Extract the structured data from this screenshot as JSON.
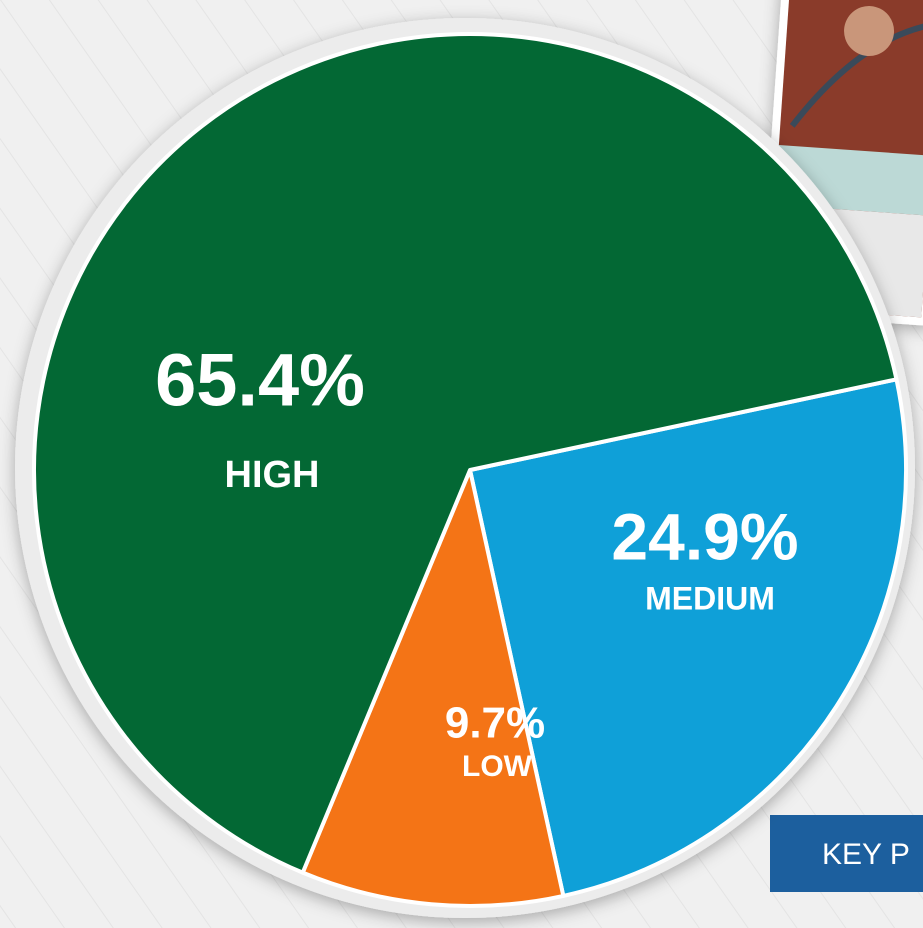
{
  "chart_data": {
    "type": "pie",
    "categories": [
      "MEDIUM",
      "LOW",
      "HIGH"
    ],
    "values": [
      24.9,
      9.7,
      65.4
    ],
    "value_labels": [
      "24.9%",
      "9.7%",
      "65.4%"
    ],
    "colors": [
      "#0fa0d8",
      "#f47416",
      "#036834"
    ]
  },
  "banner": {
    "text": "KEY P"
  }
}
